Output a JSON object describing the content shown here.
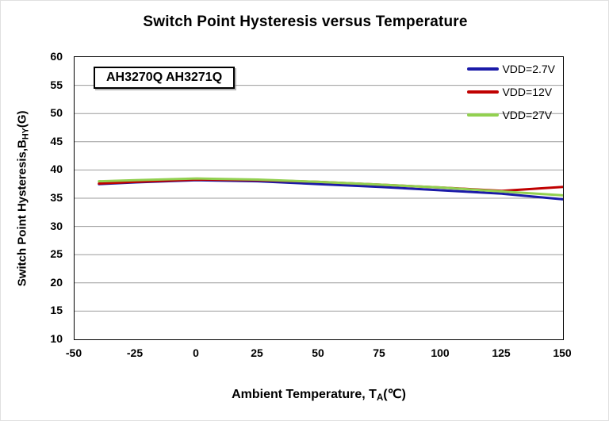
{
  "title": "Switch Point Hysteresis versus Temperature",
  "device_label": "AH3270Q AH3271Q",
  "axis": {
    "x_label_main": "Ambient  Temperature,  T",
    "x_label_sub": "A",
    "x_label_unit": "(℃)",
    "y_label_main": "Switch  Point  Hysteresis,B",
    "y_label_sub": "HY",
    "y_label_unit": "(G)"
  },
  "chart_data": {
    "type": "line",
    "title": "Switch Point Hysteresis versus Temperature",
    "xlabel": "Ambient Temperature, TA(℃)",
    "ylabel": "Switch Point Hysteresis, BHY(G)",
    "x": [
      -40,
      -25,
      0,
      25,
      50,
      75,
      100,
      125,
      150
    ],
    "series": [
      {
        "name": "VDD=2.7V",
        "color": "#1a1aa8",
        "values": [
          37.5,
          37.8,
          38.2,
          38.0,
          37.5,
          37.0,
          36.4,
          35.8,
          34.8
        ]
      },
      {
        "name": "VDD=12V",
        "color": "#c00000",
        "values": [
          37.6,
          37.9,
          38.3,
          38.2,
          37.9,
          37.4,
          36.9,
          36.3,
          37.0
        ]
      },
      {
        "name": "VDD=27V",
        "color": "#92d050",
        "values": [
          38.0,
          38.2,
          38.5,
          38.3,
          37.9,
          37.4,
          36.9,
          36.2,
          35.5
        ]
      }
    ],
    "xlim": [
      -50,
      150
    ],
    "ylim": [
      10,
      60
    ],
    "xticks": [
      -50,
      -25,
      0,
      25,
      50,
      75,
      100,
      125,
      150
    ],
    "yticks": [
      10,
      15,
      20,
      25,
      30,
      35,
      40,
      45,
      50,
      55,
      60
    ],
    "grid": "horizontal",
    "gridline_color": "#9b9b9b",
    "legend_position": "top-right-inside",
    "line_width": 3
  }
}
